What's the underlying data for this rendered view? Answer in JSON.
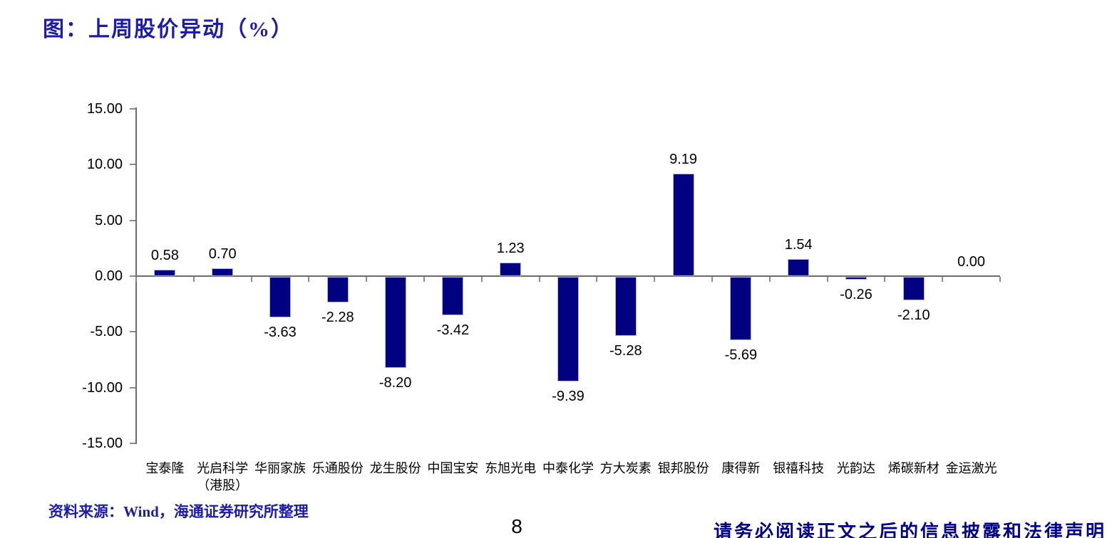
{
  "title": "图：上周股价异动（%）",
  "footer": {
    "source_label": "资料来源：Wind，海通证券研究所整理",
    "page_number": "8",
    "disclaimer": "请务必阅读正文之后的信息披露和法律声明"
  },
  "chart_data": {
    "type": "bar",
    "title": "上周股价异动（%）",
    "categories": [
      "宝泰隆",
      "光启科学",
      "华丽家族",
      "乐通股份",
      "龙生股份",
      "中国宝安",
      "东旭光电",
      "中泰化学",
      "方大炭素",
      "银邦股份",
      "康得新",
      "银禧科技",
      "光韵达",
      "烯碳新材",
      "金运激光"
    ],
    "category_sublabels": [
      "",
      "（港股）",
      "",
      "",
      "",
      "",
      "",
      "",
      "",
      "",
      "",
      "",
      "",
      "",
      ""
    ],
    "values": [
      0.58,
      0.7,
      -3.63,
      -2.28,
      -8.2,
      -3.42,
      1.23,
      -9.39,
      -5.28,
      9.19,
      -5.69,
      1.54,
      -0.26,
      -2.1,
      0.0
    ],
    "value_labels": [
      "0.58",
      "0.70",
      "-3.63",
      "-2.28",
      "-8.20",
      "-3.42",
      "1.23",
      "-9.39",
      "-5.28",
      "9.19",
      "-5.69",
      "1.54",
      "-0.26",
      "-2.10",
      "0.00"
    ],
    "xlabel": "",
    "ylabel": "",
    "ylim": [
      -15,
      15
    ],
    "ytick_values": [
      15,
      10,
      5,
      0,
      -5,
      -10,
      -15
    ],
    "ytick_labels": [
      "15.00",
      "10.00",
      "5.00",
      "0.00",
      "-5.00",
      "-10.00",
      "-15.00"
    ],
    "grid": false,
    "legend_position": "none",
    "bar_color": "#000080",
    "axis_color": "#6b6b6b"
  }
}
